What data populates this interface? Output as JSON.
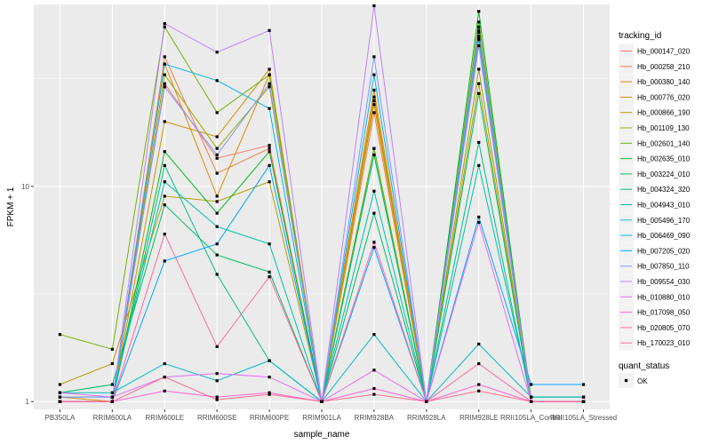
{
  "chart_data": {
    "type": "line",
    "xlabel": "sample_name",
    "ylabel": "FPKM + 1",
    "y_scale": "log10",
    "ylim": [
      0.92,
      70
    ],
    "y_ticks": [
      {
        "value": 1,
        "label": "1"
      },
      {
        "value": 10,
        "label": "10"
      }
    ],
    "grid": true,
    "legend_position": "right",
    "categories": [
      "PB350LA",
      "RRIM600LA",
      "RRIM600LE",
      "RRIM600SE",
      "RRIM600PE",
      "RRIM901LA",
      "RRIM928BA",
      "RRIM928LA",
      "RRIM928LE",
      "RRII105LA_Control",
      "RRII105LA_Stressed"
    ],
    "series": [
      {
        "name": "Hb_000147_020",
        "color": "#F8766D",
        "values": [
          1.0,
          1.0,
          30.0,
          13.5,
          15.5,
          1.0,
          25.0,
          1.0,
          52.0,
          1.0,
          1.0
        ]
      },
      {
        "name": "Hb_000258_210",
        "color": "#F07F46",
        "values": [
          1.0,
          1.0,
          40.0,
          11.5,
          15.0,
          1.0,
          22.0,
          1.0,
          55.0,
          1.0,
          1.0
        ]
      },
      {
        "name": "Hb_000380_140",
        "color": "#E18A00",
        "values": [
          1.05,
          1.0,
          37.0,
          9.0,
          33.0,
          1.0,
          28.0,
          1.0,
          50.0,
          1.05,
          1.05
        ]
      },
      {
        "name": "Hb_000776_020",
        "color": "#CF9400",
        "values": [
          1.0,
          1.0,
          20.0,
          17.0,
          35.0,
          1.0,
          26.0,
          1.0,
          49.0,
          1.0,
          1.0
        ]
      },
      {
        "name": "Hb_000866_190",
        "color": "#B79F00",
        "values": [
          1.2,
          1.5,
          9.0,
          8.5,
          10.5,
          1.0,
          24.0,
          1.0,
          30.0,
          1.0,
          1.0
        ]
      },
      {
        "name": "Hb_001109_130",
        "color": "#9AA800",
        "values": [
          1.0,
          1.0,
          33.0,
          15.0,
          29.0,
          1.0,
          15.0,
          1.0,
          35.0,
          1.0,
          1.0
        ]
      },
      {
        "name": "Hb_002601_140",
        "color": "#72B000",
        "values": [
          2.05,
          1.75,
          55.0,
          22.0,
          33.0,
          1.0,
          15.0,
          1.0,
          58.0,
          1.0,
          1.0
        ]
      },
      {
        "name": "Hb_002635_010",
        "color": "#00B81F",
        "values": [
          1.0,
          1.0,
          14.5,
          7.5,
          14.5,
          1.0,
          14.0,
          1.0,
          65.0,
          1.0,
          1.0
        ]
      },
      {
        "name": "Hb_003224_010",
        "color": "#00BE67",
        "values": [
          1.1,
          1.2,
          8.2,
          4.8,
          4.0,
          1.0,
          7.5,
          1.0,
          27.0,
          1.0,
          1.0
        ]
      },
      {
        "name": "Hb_004324_320",
        "color": "#00C08B",
        "values": [
          1.0,
          1.0,
          12.5,
          3.9,
          1.55,
          1.0,
          14.0,
          1.0,
          16.0,
          1.0,
          1.0
        ]
      },
      {
        "name": "Hb_004943_010",
        "color": "#00C1AA",
        "values": [
          1.05,
          1.05,
          10.5,
          6.5,
          5.4,
          1.0,
          9.5,
          1.0,
          12.5,
          1.05,
          1.05
        ]
      },
      {
        "name": "Hb_005496_170",
        "color": "#00BDC2",
        "values": [
          1.1,
          1.1,
          1.5,
          1.25,
          1.55,
          1.0,
          2.05,
          1.0,
          1.85,
          1.05,
          1.05
        ]
      },
      {
        "name": "Hb_006469_090",
        "color": "#00B8E7",
        "values": [
          1.0,
          1.0,
          37.0,
          31.0,
          23.0,
          1.0,
          33.0,
          1.0,
          48.0,
          1.0,
          1.0
        ]
      },
      {
        "name": "Hb_007205_020",
        "color": "#00A9FF",
        "values": [
          1.0,
          1.0,
          4.5,
          5.4,
          12.5,
          1.0,
          5.2,
          1.0,
          7.2,
          1.2,
          1.2
        ]
      },
      {
        "name": "Hb_007850_110",
        "color": "#7F96FF",
        "values": [
          1.05,
          1.05,
          29.0,
          14.0,
          30.0,
          1.0,
          40.0,
          1.0,
          53.0,
          1.0,
          1.0
        ]
      },
      {
        "name": "Hb_009554_030",
        "color": "#B983FF",
        "values": [
          1.0,
          1.0,
          57.0,
          42.0,
          53.0,
          1.0,
          69.0,
          1.0,
          45.0,
          1.0,
          1.0
        ]
      },
      {
        "name": "Hb_010880_010",
        "color": "#E76BF3",
        "values": [
          1.1,
          1.05,
          1.3,
          1.35,
          1.3,
          1.0,
          1.4,
          1.0,
          6.8,
          1.0,
          1.0
        ]
      },
      {
        "name": "Hb_017098_050",
        "color": "#FD61D1",
        "values": [
          1.0,
          1.0,
          1.12,
          1.05,
          1.1,
          1.0,
          1.15,
          1.0,
          1.2,
          1.0,
          1.0
        ]
      },
      {
        "name": "Hb_020805_070",
        "color": "#FF67A4",
        "values": [
          1.0,
          1.0,
          6.0,
          1.8,
          3.8,
          1.0,
          5.5,
          1.0,
          1.5,
          1.0,
          1.0
        ]
      },
      {
        "name": "Hb_170023_010",
        "color": "#FF6C91",
        "values": [
          1.0,
          1.0,
          1.3,
          1.02,
          1.08,
          1.0,
          1.08,
          1.0,
          1.12,
          1.0,
          1.0
        ]
      }
    ]
  },
  "legend": {
    "title": "tracking_id"
  },
  "quant_status": {
    "title": "quant_status",
    "label": "OK"
  }
}
